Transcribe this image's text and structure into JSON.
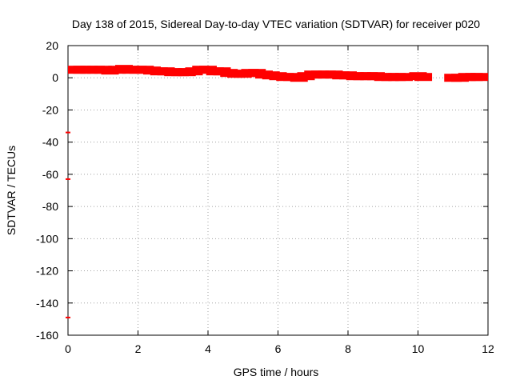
{
  "chart_data": {
    "type": "scatter",
    "title": "Day 138 of 2015, Sidereal Day-to-day VTEC variation (SDTVAR) for receiver p020",
    "xlabel": "GPS time / hours",
    "ylabel": "SDTVAR / TECUs",
    "xlim": [
      0,
      12
    ],
    "ylim": [
      -160,
      20
    ],
    "xticks": [
      0,
      2,
      4,
      6,
      8,
      10,
      12
    ],
    "yticks": [
      20,
      0,
      -20,
      -40,
      -60,
      -80,
      -100,
      -120,
      -140,
      -160
    ],
    "grid": true,
    "marker_color": "#ff0000",
    "series": [
      {
        "points": [
          [
            0.25,
            5
          ],
          [
            0.4,
            5
          ],
          [
            0.6,
            5
          ],
          [
            0.8,
            5
          ],
          [
            1.0,
            5
          ],
          [
            1.2,
            4.5
          ],
          [
            1.4,
            5
          ],
          [
            1.6,
            5.5
          ],
          [
            1.8,
            5
          ],
          [
            2.0,
            5
          ],
          [
            2.2,
            5
          ],
          [
            2.4,
            4.5
          ],
          [
            2.6,
            4
          ],
          [
            2.8,
            4
          ],
          [
            3.0,
            3.5
          ],
          [
            3.2,
            3.5
          ],
          [
            3.4,
            3.5
          ],
          [
            3.6,
            4
          ],
          [
            3.8,
            5
          ],
          [
            4.0,
            5
          ],
          [
            4.2,
            4
          ],
          [
            4.4,
            4
          ],
          [
            4.6,
            3
          ],
          [
            4.8,
            2.5
          ],
          [
            5.0,
            2.5
          ],
          [
            5.2,
            3
          ],
          [
            5.4,
            3
          ],
          [
            5.6,
            2
          ],
          [
            5.8,
            1.5
          ],
          [
            6.0,
            1
          ],
          [
            6.2,
            0.5
          ],
          [
            6.4,
            0.5
          ],
          [
            6.6,
            0
          ],
          [
            6.8,
            1
          ],
          [
            7.0,
            2
          ],
          [
            7.2,
            2
          ],
          [
            7.4,
            2
          ],
          [
            7.6,
            2
          ],
          [
            7.8,
            1.5
          ],
          [
            8.0,
            1.5
          ],
          [
            8.2,
            1
          ],
          [
            8.4,
            1
          ],
          [
            8.6,
            1
          ],
          [
            8.8,
            1
          ],
          [
            9.0,
            0.5
          ],
          [
            9.2,
            0.5
          ],
          [
            9.4,
            0.5
          ],
          [
            9.6,
            0.5
          ],
          [
            10.0,
            1
          ],
          [
            10.15,
            0.5
          ],
          [
            11.0,
            0
          ],
          [
            11.2,
            0
          ],
          [
            11.4,
            0.5
          ],
          [
            11.6,
            0.5
          ],
          [
            11.75,
            0.5
          ]
        ],
        "outliers": [
          [
            0.0,
            -34
          ],
          [
            0.0,
            -63
          ],
          [
            0.0,
            -149
          ]
        ]
      }
    ]
  }
}
